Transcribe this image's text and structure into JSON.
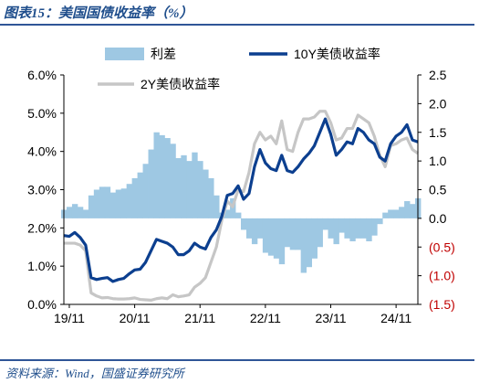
{
  "header": {
    "title": "图表15：美国国债收益率（%）"
  },
  "footer": {
    "source": "资料来源：Wind，国盛证券研究所"
  },
  "colors": {
    "spread": "#9ec8e3",
    "y10": "#0c3f8f",
    "y2": "#c6c6c6",
    "negative_tick": "#c00000",
    "frame": "#2f5597"
  },
  "chart_data": {
    "type": "line",
    "x_tick_labels": [
      "19/11",
      "20/11",
      "21/11",
      "22/11",
      "23/11",
      "24/11"
    ],
    "x_range": [
      "2019-10",
      "2025-03"
    ],
    "left_axis": {
      "ticks": [
        "0.0%",
        "1.0%",
        "2.0%",
        "3.0%",
        "4.0%",
        "5.0%",
        "6.0%"
      ],
      "ylim": [
        0,
        6
      ]
    },
    "right_axis": {
      "ticks": [
        "(1.5)",
        "(1.0)",
        "(0.5)",
        "0.0",
        "0.5",
        "1.0",
        "1.5",
        "2.0",
        "2.5"
      ],
      "ylim": [
        -1.5,
        2.5
      ]
    },
    "legend_position": "top",
    "series": [
      {
        "name": "利差",
        "type": "area",
        "axis": "right",
        "x": [
          "2019-10",
          "2019-11",
          "2019-12",
          "2020-01",
          "2020-02",
          "2020-03",
          "2020-04",
          "2020-05",
          "2020-06",
          "2020-07",
          "2020-08",
          "2020-09",
          "2020-10",
          "2020-11",
          "2020-12",
          "2021-01",
          "2021-02",
          "2021-03",
          "2021-04",
          "2021-05",
          "2021-06",
          "2021-07",
          "2021-08",
          "2021-09",
          "2021-10",
          "2021-11",
          "2021-12",
          "2022-01",
          "2022-02",
          "2022-03",
          "2022-04",
          "2022-05",
          "2022-06",
          "2022-07",
          "2022-08",
          "2022-09",
          "2022-10",
          "2022-11",
          "2022-12",
          "2023-01",
          "2023-02",
          "2023-03",
          "2023-04",
          "2023-05",
          "2023-06",
          "2023-07",
          "2023-08",
          "2023-09",
          "2023-10",
          "2023-11",
          "2023-12",
          "2024-01",
          "2024-02",
          "2024-03",
          "2024-04",
          "2024-05",
          "2024-06",
          "2024-07",
          "2024-08",
          "2024-09",
          "2024-10",
          "2024-11",
          "2024-12",
          "2025-01",
          "2025-02",
          "2025-03"
        ],
        "values": [
          0.15,
          0.2,
          0.25,
          0.2,
          0.15,
          0.4,
          0.5,
          0.55,
          0.55,
          0.45,
          0.5,
          0.52,
          0.6,
          0.7,
          0.8,
          0.95,
          1.2,
          1.5,
          1.45,
          1.4,
          1.3,
          1.05,
          1.1,
          1.0,
          1.15,
          1.0,
          0.85,
          0.7,
          0.4,
          0.1,
          0.15,
          0.35,
          0.1,
          -0.2,
          -0.35,
          -0.45,
          -0.35,
          -0.6,
          -0.65,
          -0.7,
          -0.8,
          -0.5,
          -0.55,
          -0.55,
          -0.95,
          -0.85,
          -0.7,
          -0.5,
          -0.2,
          -0.35,
          -0.45,
          -0.25,
          -0.35,
          -0.4,
          -0.35,
          -0.35,
          -0.4,
          -0.3,
          -0.1,
          0.1,
          0.15,
          0.15,
          0.2,
          0.3,
          0.25,
          0.35
        ]
      },
      {
        "name": "10Y美债收益率",
        "type": "line",
        "axis": "left",
        "x": [
          "2019-10",
          "2019-11",
          "2019-12",
          "2020-01",
          "2020-02",
          "2020-03",
          "2020-04",
          "2020-05",
          "2020-06",
          "2020-07",
          "2020-08",
          "2020-09",
          "2020-10",
          "2020-11",
          "2020-12",
          "2021-01",
          "2021-02",
          "2021-03",
          "2021-04",
          "2021-05",
          "2021-06",
          "2021-07",
          "2021-08",
          "2021-09",
          "2021-10",
          "2021-11",
          "2021-12",
          "2022-01",
          "2022-02",
          "2022-03",
          "2022-04",
          "2022-05",
          "2022-06",
          "2022-07",
          "2022-08",
          "2022-09",
          "2022-10",
          "2022-11",
          "2022-12",
          "2023-01",
          "2023-02",
          "2023-03",
          "2023-04",
          "2023-05",
          "2023-06",
          "2023-07",
          "2023-08",
          "2023-09",
          "2023-10",
          "2023-11",
          "2023-12",
          "2024-01",
          "2024-02",
          "2024-03",
          "2024-04",
          "2024-05",
          "2024-06",
          "2024-07",
          "2024-08",
          "2024-09",
          "2024-10",
          "2024-11",
          "2024-12",
          "2025-01",
          "2025-02",
          "2025-03"
        ],
        "values": [
          1.8,
          1.78,
          1.88,
          1.75,
          1.55,
          0.7,
          0.65,
          0.68,
          0.7,
          0.6,
          0.65,
          0.68,
          0.8,
          0.9,
          0.92,
          1.1,
          1.4,
          1.7,
          1.65,
          1.6,
          1.5,
          1.3,
          1.3,
          1.4,
          1.6,
          1.5,
          1.45,
          1.75,
          1.95,
          2.3,
          2.85,
          2.9,
          3.1,
          2.75,
          2.9,
          3.6,
          4.05,
          3.7,
          3.55,
          3.5,
          3.9,
          3.5,
          3.45,
          3.6,
          3.8,
          3.95,
          4.15,
          4.5,
          4.85,
          4.45,
          3.9,
          4.05,
          4.25,
          4.2,
          4.6,
          4.5,
          4.3,
          4.2,
          3.85,
          3.75,
          4.2,
          4.4,
          4.5,
          4.7,
          4.3,
          4.25
        ]
      },
      {
        "name": "2Y美债收益率",
        "type": "line",
        "axis": "left",
        "x": [
          "2019-10",
          "2019-11",
          "2019-12",
          "2020-01",
          "2020-02",
          "2020-03",
          "2020-04",
          "2020-05",
          "2020-06",
          "2020-07",
          "2020-08",
          "2020-09",
          "2020-10",
          "2020-11",
          "2020-12",
          "2021-01",
          "2021-02",
          "2021-03",
          "2021-04",
          "2021-05",
          "2021-06",
          "2021-07",
          "2021-08",
          "2021-09",
          "2021-10",
          "2021-11",
          "2021-12",
          "2022-01",
          "2022-02",
          "2022-03",
          "2022-04",
          "2022-05",
          "2022-06",
          "2022-07",
          "2022-08",
          "2022-09",
          "2022-10",
          "2022-11",
          "2022-12",
          "2023-01",
          "2023-02",
          "2023-03",
          "2023-04",
          "2023-05",
          "2023-06",
          "2023-07",
          "2023-08",
          "2023-09",
          "2023-10",
          "2023-11",
          "2023-12",
          "2024-01",
          "2024-02",
          "2024-03",
          "2024-04",
          "2024-05",
          "2024-06",
          "2024-07",
          "2024-08",
          "2024-09",
          "2024-10",
          "2024-11",
          "2024-12",
          "2025-01",
          "2025-02",
          "2025-03"
        ],
        "values": [
          1.6,
          1.6,
          1.6,
          1.55,
          1.4,
          0.3,
          0.22,
          0.17,
          0.18,
          0.15,
          0.14,
          0.14,
          0.15,
          0.17,
          0.13,
          0.12,
          0.11,
          0.15,
          0.17,
          0.15,
          0.25,
          0.2,
          0.22,
          0.25,
          0.45,
          0.55,
          0.7,
          1.1,
          1.5,
          2.2,
          2.7,
          2.55,
          3.0,
          2.95,
          3.45,
          4.2,
          4.5,
          4.3,
          4.4,
          4.2,
          4.8,
          4.05,
          4.0,
          4.5,
          4.85,
          4.85,
          4.9,
          5.05,
          5.05,
          4.75,
          4.3,
          4.35,
          4.6,
          4.6,
          4.95,
          4.85,
          4.75,
          4.4,
          3.9,
          3.6,
          4.15,
          4.2,
          4.3,
          4.35,
          4.05,
          3.95
        ]
      }
    ]
  }
}
